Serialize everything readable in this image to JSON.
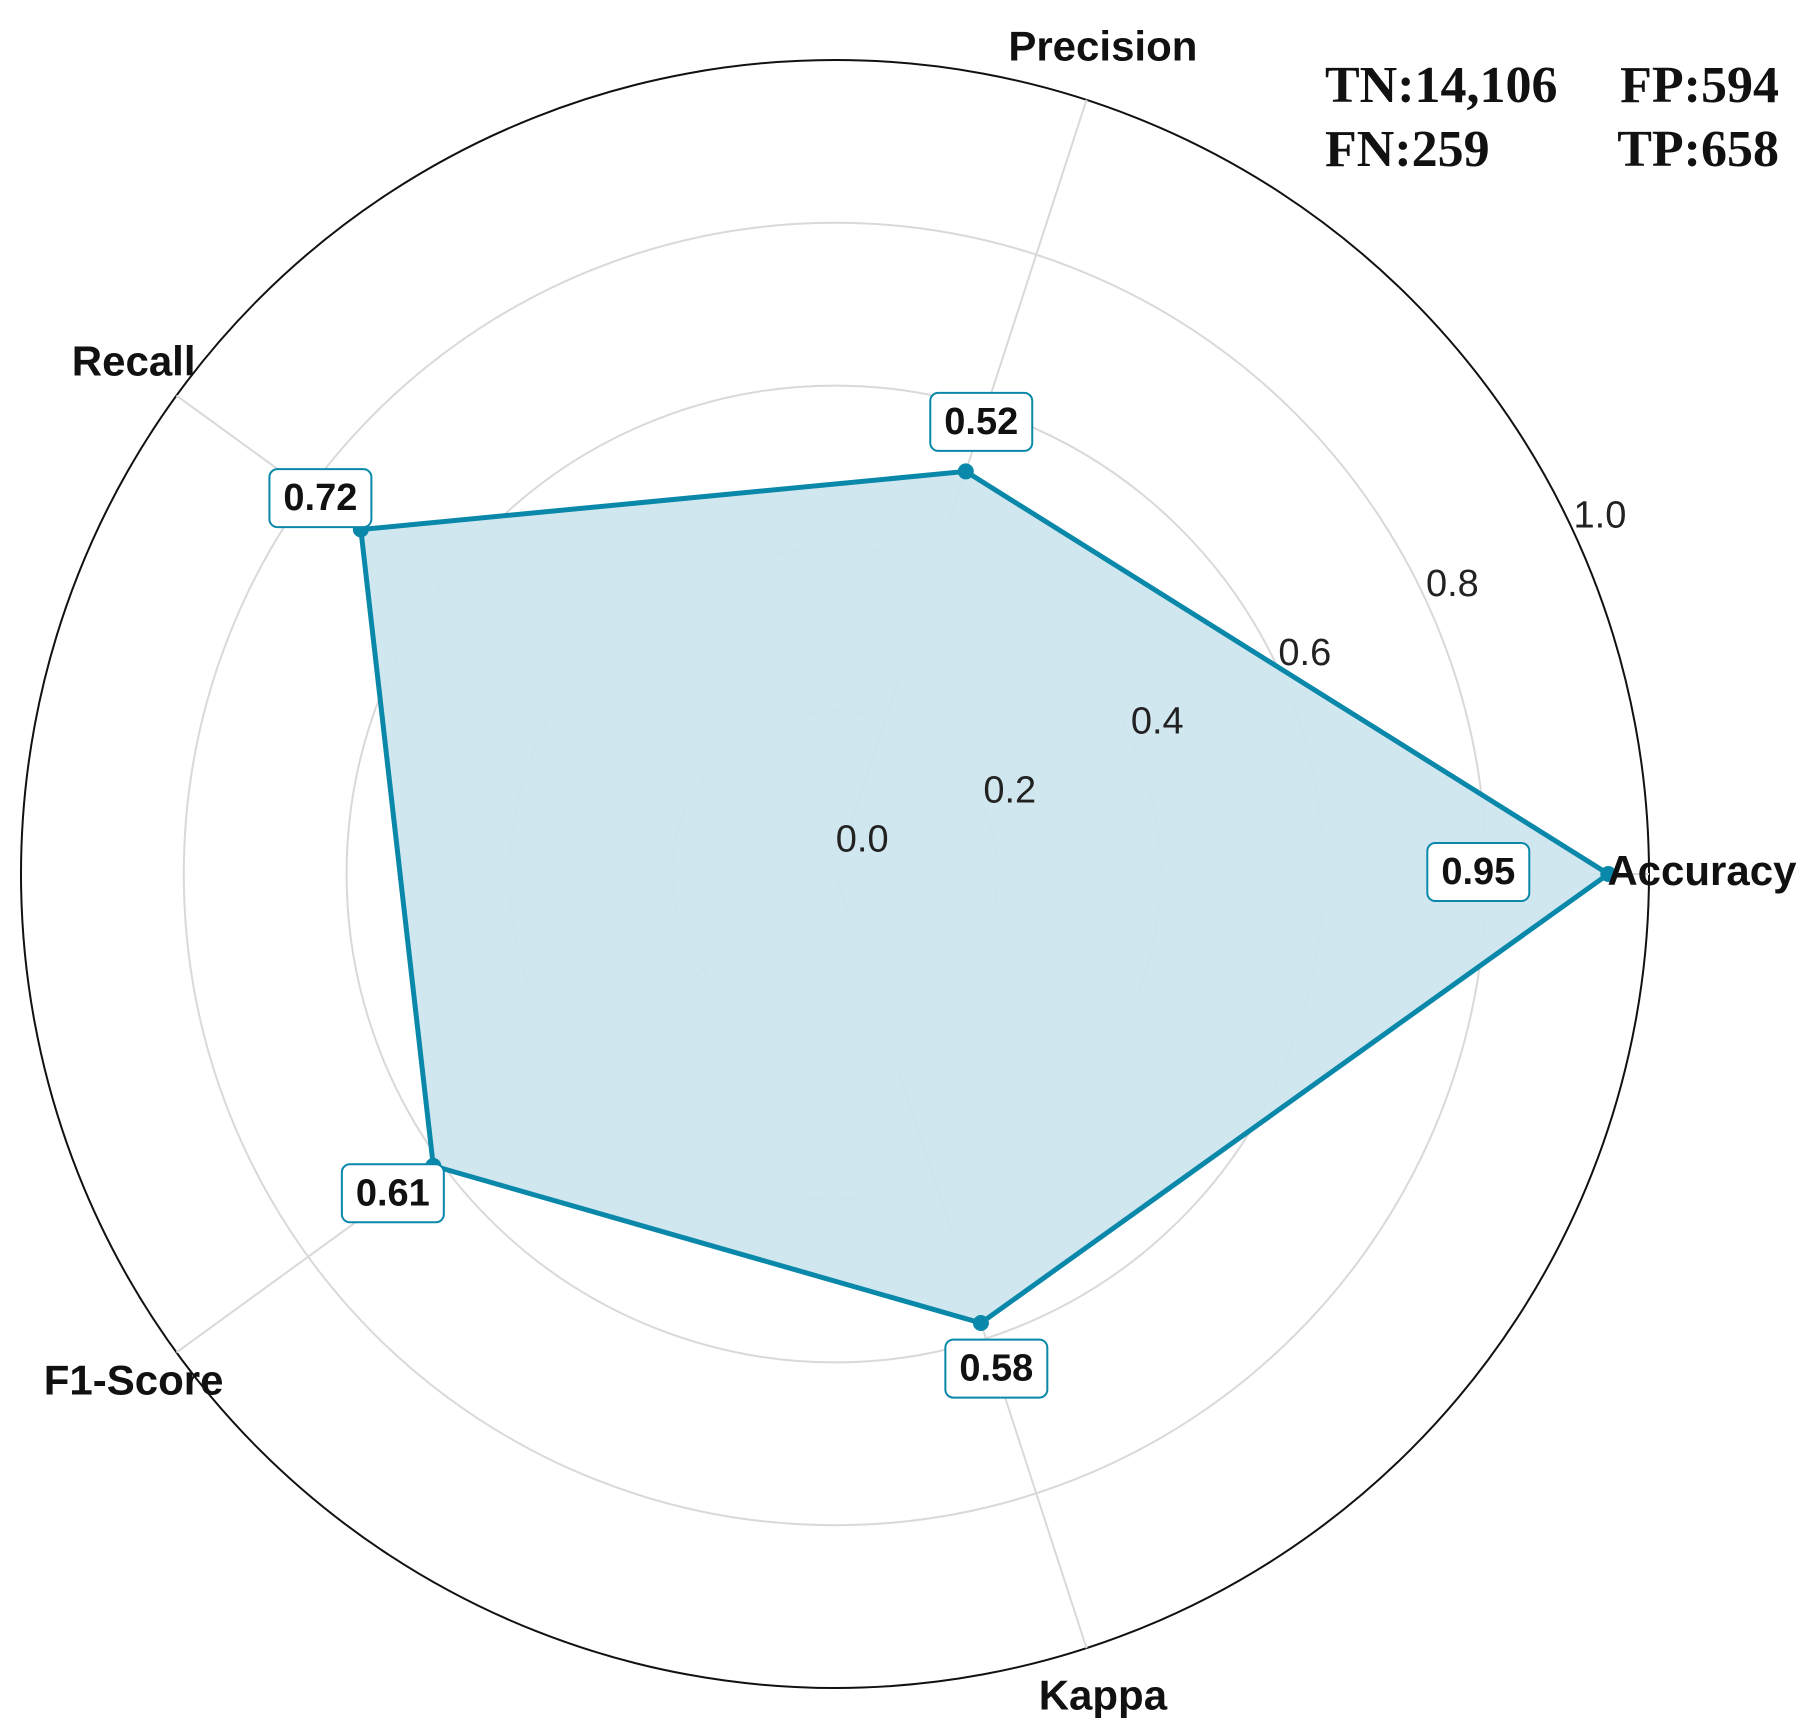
{
  "chart_data": {
    "type": "radar",
    "categories": [
      "Accuracy",
      "Precision",
      "Recall",
      "F1-Score",
      "Kappa"
    ],
    "values": [
      0.95,
      0.52,
      0.72,
      0.61,
      0.58
    ],
    "color": "#0a88aa",
    "fill_color": "#cfe6ef",
    "rlim": [
      0,
      1
    ],
    "rticks": [
      {
        "value": 0,
        "label": "0.0"
      },
      0.2,
      0.4,
      0.6,
      0.8,
      {
        "value": 1,
        "label": "1.0"
      }
    ],
    "grid": true,
    "annotations": [
      "TN:14,106",
      "FP:594",
      "FN:259",
      "TP:658"
    ]
  }
}
